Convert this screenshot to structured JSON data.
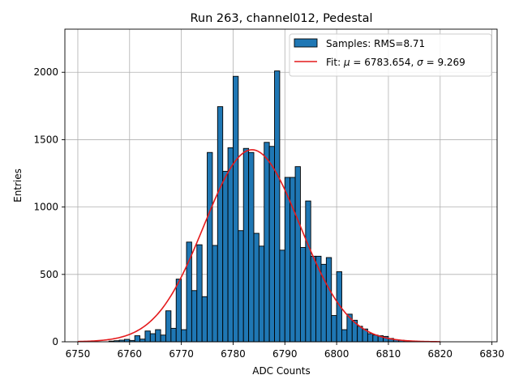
{
  "chart_data": {
    "type": "bar",
    "title": "Run 263, channel012, Pedestal",
    "xlabel": "ADC Counts",
    "ylabel": "Entries",
    "xlim": [
      6747.5,
      6831
    ],
    "ylim": [
      0,
      2320
    ],
    "xticks": [
      6750,
      6760,
      6770,
      6780,
      6790,
      6800,
      6810,
      6820,
      6830
    ],
    "yticks": [
      0,
      500,
      1000,
      1500,
      2000
    ],
    "grid": true,
    "legend_position": "top-right",
    "bin_width": 1,
    "histogram": {
      "name": "Samples: RMS=8.71",
      "color": "#1f77b4",
      "bin_starts": [
        6750,
        6751,
        6752,
        6753,
        6754,
        6755,
        6756,
        6757,
        6758,
        6759,
        6760,
        6761,
        6762,
        6763,
        6764,
        6765,
        6766,
        6767,
        6768,
        6769,
        6770,
        6771,
        6772,
        6773,
        6774,
        6775,
        6776,
        6777,
        6778,
        6779,
        6780,
        6781,
        6782,
        6783,
        6784,
        6785,
        6786,
        6787,
        6788,
        6789,
        6790,
        6791,
        6792,
        6793,
        6794,
        6795,
        6796,
        6797,
        6798,
        6799,
        6800,
        6801,
        6802,
        6803,
        6804,
        6805,
        6806,
        6807,
        6808,
        6809,
        6810,
        6811,
        6812,
        6813,
        6814,
        6815,
        6816,
        6817,
        6818,
        6819
      ],
      "counts": [
        0,
        0,
        0,
        0,
        0,
        0,
        5,
        8,
        12,
        18,
        10,
        45,
        20,
        80,
        60,
        90,
        50,
        230,
        100,
        465,
        90,
        740,
        380,
        720,
        335,
        1405,
        715,
        1745,
        1265,
        1440,
        1970,
        825,
        1435,
        1405,
        805,
        710,
        1480,
        1450,
        2010,
        680,
        1220,
        1220,
        1300,
        700,
        1045,
        635,
        635,
        575,
        625,
        195,
        520,
        90,
        205,
        160,
        115,
        95,
        60,
        50,
        45,
        40,
        25,
        15,
        12,
        8,
        5,
        3,
        2,
        1,
        0,
        0
      ]
    },
    "fit": {
      "name": "Fit: μ = 6783.654, σ = 9.269",
      "label_prefix": "Fit: ",
      "mu_symbol": "μ",
      "mu_text": " = 6783.654, ",
      "sigma_symbol": "σ",
      "sigma_text": " = 9.269",
      "color": "#e41a1c",
      "mu": 6783.654,
      "sigma": 9.269,
      "amplitude": 1425,
      "x_range": [
        6750,
        6820
      ]
    }
  }
}
